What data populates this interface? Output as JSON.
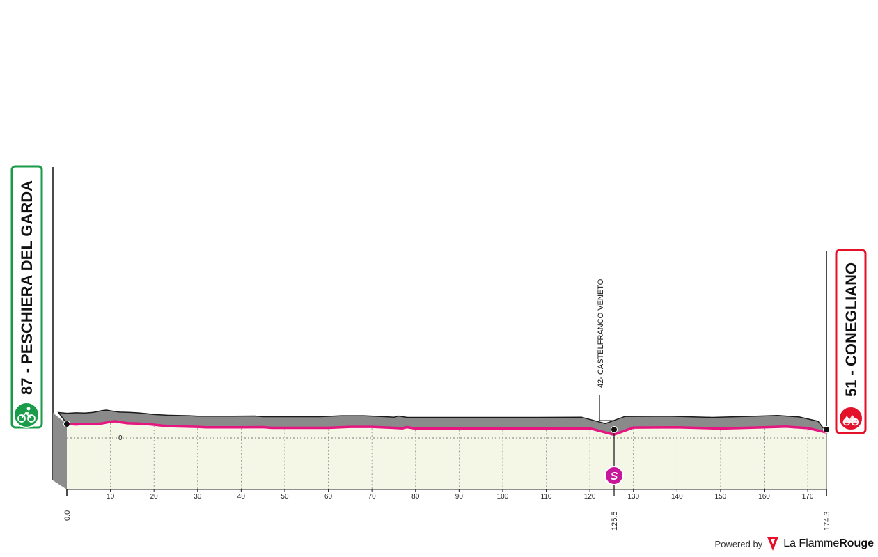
{
  "chart_data": {
    "type": "area",
    "title": "",
    "xlabel": "",
    "ylabel": "",
    "xlim": [
      0,
      174.3
    ],
    "x_ticks": [
      10,
      20,
      30,
      40,
      50,
      60,
      70,
      80,
      90,
      100,
      110,
      120,
      130,
      140,
      150,
      160,
      170
    ],
    "y_ref_label": "0",
    "series": [
      {
        "x": [
          0,
          2,
          4,
          6,
          8,
          10,
          11,
          12,
          14,
          16,
          18,
          20,
          22,
          25,
          30,
          32,
          35,
          40,
          45,
          47,
          50,
          55,
          60,
          65,
          70,
          75,
          77,
          78,
          80,
          85,
          90,
          100,
          110,
          120,
          125.5,
          130,
          140,
          150,
          160,
          165,
          170,
          174.3
        ],
        "values": [
          87,
          84,
          86,
          85,
          88,
          95,
          97,
          94,
          89,
          88,
          86,
          83,
          79,
          76,
          74,
          72,
          72,
          72,
          73,
          70,
          70,
          70,
          70,
          74,
          74,
          70,
          68,
          73,
          67,
          67,
          67,
          67,
          67,
          68,
          42,
          71,
          72,
          67,
          72,
          75,
          69,
          51
        ]
      }
    ],
    "start": {
      "km": "0.0",
      "label": "87 - PESCHIERA DEL GARDA"
    },
    "finish": {
      "km": "174.3",
      "label": "51 - CONEGLIANO"
    },
    "checkpoints": [
      {
        "km": 125.5,
        "km_label": "125.5",
        "label": "42- CASTELFRANCO VENETO",
        "badge": "S"
      }
    ],
    "colors": {
      "profile_line": "#e6157f",
      "fill": "#f4f6e6",
      "top_band": "#8a8a8a",
      "start_frame": "#1a9b4a",
      "finish_frame": "#e3122a",
      "sprint_badge": "#c8169a"
    }
  },
  "footer": {
    "powered_by": "Powered by",
    "brand_a": "La Flamme",
    "brand_b": "Rouge"
  }
}
